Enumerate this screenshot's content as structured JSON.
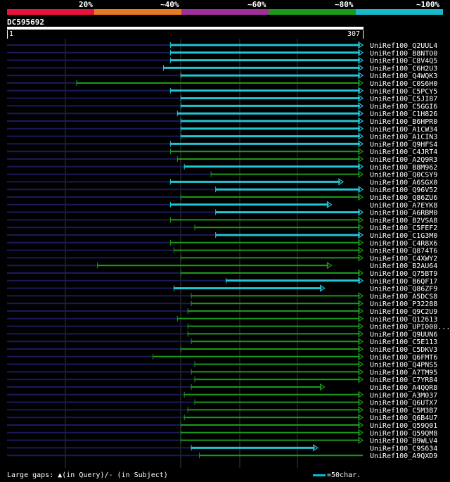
{
  "legend": {
    "labels": [
      "20%",
      "~40%",
      "~60%",
      "~80%",
      "~100%"
    ],
    "colors": [
      "#e8133a",
      "#e87a22",
      "#a03098",
      "#1a9a1a",
      "#18b8c8"
    ]
  },
  "query": {
    "id": "DC595692",
    "start": "1",
    "end": "307"
  },
  "footer": {
    "gaps_text": "Large gaps: ▲(in Query)/- (in Subject)",
    "scale_text": "=50char."
  },
  "chart_data": {
    "type": "alignment",
    "query_length": 307,
    "hits": [
      {
        "label": "UniRef100_Q2UUL4",
        "start": 141,
        "end": 307,
        "color": "cyan",
        "arrow": true
      },
      {
        "label": "UniRef100_B8NTO0",
        "start": 141,
        "end": 307,
        "color": "cyan",
        "arrow": true
      },
      {
        "label": "UniRef100_C8V4Q5",
        "start": 141,
        "end": 307,
        "color": "cyan",
        "arrow": true
      },
      {
        "label": "UniRef100_C6H2U3",
        "start": 135,
        "end": 307,
        "color": "cyan",
        "arrow": true
      },
      {
        "label": "UniRef100_Q4WQK3",
        "start": 150,
        "end": 307,
        "color": "cyan",
        "arrow": true
      },
      {
        "label": "UniRef100_C0S6H0",
        "start": 60,
        "end": 307,
        "color": "green",
        "arrow": true
      },
      {
        "label": "UniRef100_C5PCY5",
        "start": 141,
        "end": 307,
        "color": "cyan",
        "arrow": true
      },
      {
        "label": "UniRef100_C5JI87",
        "start": 150,
        "end": 307,
        "color": "cyan",
        "arrow": true
      },
      {
        "label": "UniRef100_C5GGI6",
        "start": 150,
        "end": 307,
        "color": "cyan",
        "arrow": true
      },
      {
        "label": "UniRef100_C1H826",
        "start": 147,
        "end": 307,
        "color": "cyan",
        "arrow": true
      },
      {
        "label": "UniRef100_B6HPR0",
        "start": 150,
        "end": 307,
        "color": "cyan",
        "arrow": true
      },
      {
        "label": "UniRef100_A1CW34",
        "start": 150,
        "end": 307,
        "color": "cyan",
        "arrow": true
      },
      {
        "label": "UniRef100_A1CIN3",
        "start": 150,
        "end": 307,
        "color": "cyan",
        "arrow": true
      },
      {
        "label": "UniRef100_Q9HFS4",
        "start": 141,
        "end": 307,
        "color": "cyan",
        "arrow": true
      },
      {
        "label": "UniRef100_C4JRT4",
        "start": 141,
        "end": 307,
        "color": "green",
        "arrow": true
      },
      {
        "label": "UniRef100_A2Q9R3",
        "start": 147,
        "end": 307,
        "color": "green",
        "arrow": true
      },
      {
        "label": "UniRef100_B8M962",
        "start": 153,
        "end": 307,
        "color": "cyan",
        "arrow": true
      },
      {
        "label": "UniRef100_Q0CSY9",
        "start": 176,
        "end": 307,
        "color": "green",
        "arrow": true
      },
      {
        "label": "UniRef100_A6SGX0",
        "start": 141,
        "end": 290,
        "color": "cyan",
        "arrow": true
      },
      {
        "label": "UniRef100_Q96V52",
        "start": 180,
        "end": 307,
        "color": "cyan",
        "arrow": true
      },
      {
        "label": "UniRef100_Q86ZU6",
        "start": 150,
        "end": 307,
        "color": "green",
        "arrow": true
      },
      {
        "label": "UniRef100_A7EYK8",
        "start": 141,
        "end": 280,
        "color": "cyan",
        "arrow": true
      },
      {
        "label": "UniRef100_A6RBM0",
        "start": 180,
        "end": 307,
        "color": "cyan",
        "arrow": true
      },
      {
        "label": "UniRef100_B2VSA8",
        "start": 141,
        "end": 307,
        "color": "green",
        "arrow": true
      },
      {
        "label": "UniRef100_C5FEF2",
        "start": 162,
        "end": 307,
        "color": "green",
        "arrow": true
      },
      {
        "label": "UniRef100_C1G3M0",
        "start": 180,
        "end": 307,
        "color": "cyan",
        "arrow": true
      },
      {
        "label": "UniRef100_C4R8X6",
        "start": 141,
        "end": 307,
        "color": "green",
        "arrow": true
      },
      {
        "label": "UniRef100_Q874T6",
        "start": 144,
        "end": 307,
        "color": "green",
        "arrow": true
      },
      {
        "label": "UniRef100_C4XWY2",
        "start": 150,
        "end": 307,
        "color": "green",
        "arrow": true
      },
      {
        "label": "UniRef100_B2AU64",
        "start": 78,
        "end": 280,
        "color": "green",
        "arrow": true
      },
      {
        "label": "UniRef100_Q75BT9",
        "start": 150,
        "end": 307,
        "color": "green",
        "arrow": true
      },
      {
        "label": "UniRef100_B6QF17",
        "start": 189,
        "end": 307,
        "color": "cyan",
        "arrow": true
      },
      {
        "label": "UniRef100_Q86ZF9",
        "start": 144,
        "end": 274,
        "color": "cyan",
        "arrow": true
      },
      {
        "label": "UniRef100_A5DCS8",
        "start": 159,
        "end": 307,
        "color": "green",
        "arrow": true
      },
      {
        "label": "UniRef100_P32288",
        "start": 159,
        "end": 307,
        "color": "green",
        "arrow": true
      },
      {
        "label": "UniRef100_Q9C2U9",
        "start": 156,
        "end": 307,
        "color": "green",
        "arrow": true
      },
      {
        "label": "UniRef100_Q12613",
        "start": 147,
        "end": 307,
        "color": "green",
        "arrow": true
      },
      {
        "label": "UniRef100_UPI000...",
        "start": 156,
        "end": 307,
        "color": "green",
        "arrow": true
      },
      {
        "label": "UniRef100_Q9UUN6",
        "start": 156,
        "end": 307,
        "color": "green",
        "arrow": true
      },
      {
        "label": "UniRef100_C5E113",
        "start": 159,
        "end": 307,
        "color": "green",
        "arrow": true
      },
      {
        "label": "UniRef100_C5DKV3",
        "start": 150,
        "end": 307,
        "color": "green",
        "arrow": true
      },
      {
        "label": "UniRef100_Q6FMT6",
        "start": 126,
        "end": 307,
        "color": "green",
        "arrow": true
      },
      {
        "label": "UniRef100_Q4PNS5",
        "start": 162,
        "end": 307,
        "color": "green",
        "arrow": true
      },
      {
        "label": "UniRef100_A7TM95",
        "start": 159,
        "end": 307,
        "color": "green",
        "arrow": true
      },
      {
        "label": "UniRef100_C7YR84",
        "start": 162,
        "end": 307,
        "color": "green",
        "arrow": true
      },
      {
        "label": "UniRef100_A4QQR8",
        "start": 159,
        "end": 274,
        "color": "green",
        "arrow": true
      },
      {
        "label": "UniRef100_A3M037",
        "start": 153,
        "end": 307,
        "color": "green",
        "arrow": true
      },
      {
        "label": "UniRef100_Q6UTX7",
        "start": 162,
        "end": 307,
        "color": "green",
        "arrow": true
      },
      {
        "label": "UniRef100_C5M3B7",
        "start": 156,
        "end": 307,
        "color": "green",
        "arrow": true
      },
      {
        "label": "UniRef100_Q6B4U7",
        "start": 153,
        "end": 307,
        "color": "green",
        "arrow": true
      },
      {
        "label": "UniRef100_Q59Q01",
        "start": 150,
        "end": 307,
        "color": "green",
        "arrow": true
      },
      {
        "label": "UniRef100_Q59QM8",
        "start": 150,
        "end": 307,
        "color": "green",
        "arrow": true
      },
      {
        "label": "UniRef100_B9WLV4",
        "start": 150,
        "end": 307,
        "color": "green",
        "arrow": true
      },
      {
        "label": "UniRef100_C9S634",
        "start": 159,
        "end": 268,
        "color": "cyan",
        "arrow": true
      },
      {
        "label": "UniRef100_A9QXD9",
        "start": 166,
        "end": 307,
        "color": "green",
        "arrow": false
      }
    ]
  }
}
